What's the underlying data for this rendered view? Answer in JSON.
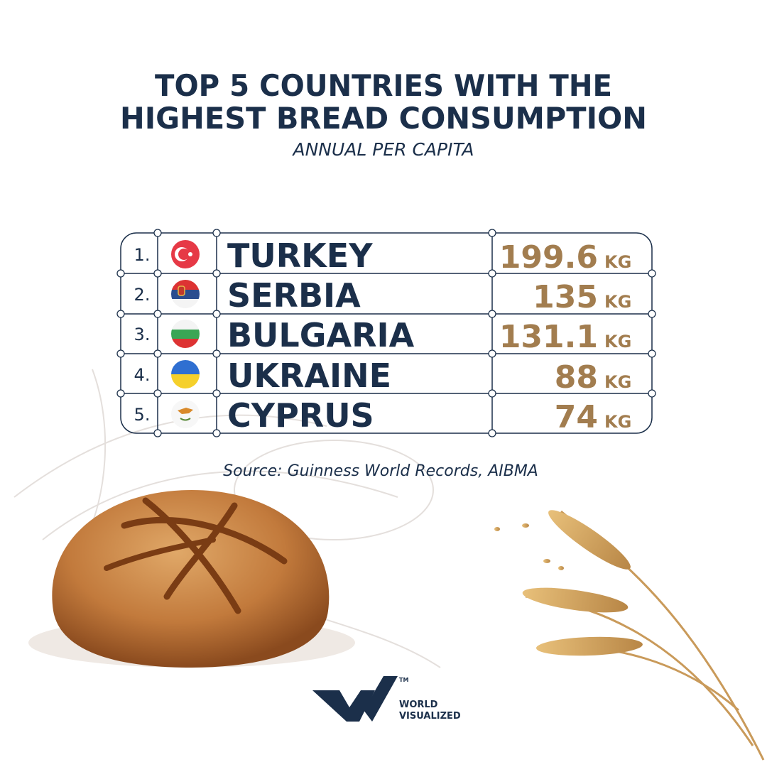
{
  "header": {
    "title": [
      "TOP 5 COUNTRIES WITH THE",
      "HIGHEST BREAD CONSUMPTION"
    ],
    "subtitle": "ANNUAL PER CAPITA"
  },
  "table": {
    "rows": [
      {
        "rank": "1.",
        "country": "TURKEY",
        "value": 199.6,
        "unit": "KG"
      },
      {
        "rank": "2.",
        "country": "SERBIA",
        "value": 135,
        "unit": "KG"
      },
      {
        "rank": "3.",
        "country": "BULGARIA",
        "value": 131.1,
        "unit": "KG"
      },
      {
        "rank": "4.",
        "country": "UKRAINE",
        "value": 88,
        "unit": "KG"
      },
      {
        "rank": "5.",
        "country": "CYPRUS",
        "value": 74,
        "unit": "KG"
      }
    ]
  },
  "source": "Source: Guinness World Records, AIBMA",
  "logo": {
    "line1": "WORLD",
    "line2": "VISUALIZED",
    "mark": "TM"
  }
}
